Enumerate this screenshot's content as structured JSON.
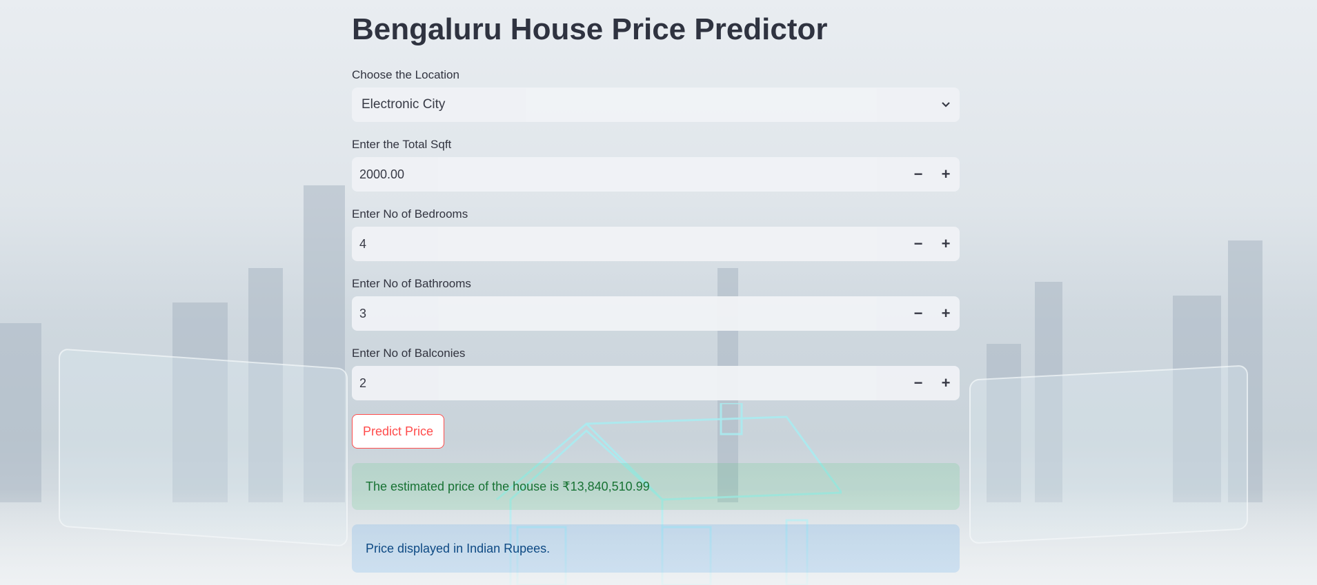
{
  "app": {
    "title": "Bengaluru House Price Predictor"
  },
  "location": {
    "label": "Choose the Location",
    "value": "Electronic City"
  },
  "sqft": {
    "label": "Enter the Total Sqft",
    "value": "2000.00"
  },
  "bedrooms": {
    "label": "Enter No of Bedrooms",
    "value": "4"
  },
  "bathrooms": {
    "label": "Enter No of Bathrooms",
    "value": "3"
  },
  "balconies": {
    "label": "Enter No of Balconies",
    "value": "2"
  },
  "stepper": {
    "minus": "−",
    "plus": "+"
  },
  "predict_button": {
    "label": "Predict Price"
  },
  "result": {
    "text": "The estimated price of the house is ₹13,840,510.99"
  },
  "info": {
    "text": "Price displayed in Indian Rupees."
  },
  "colors": {
    "accent": "#ff4b4b",
    "success_text": "#177233",
    "info_text": "#0e4a84"
  }
}
